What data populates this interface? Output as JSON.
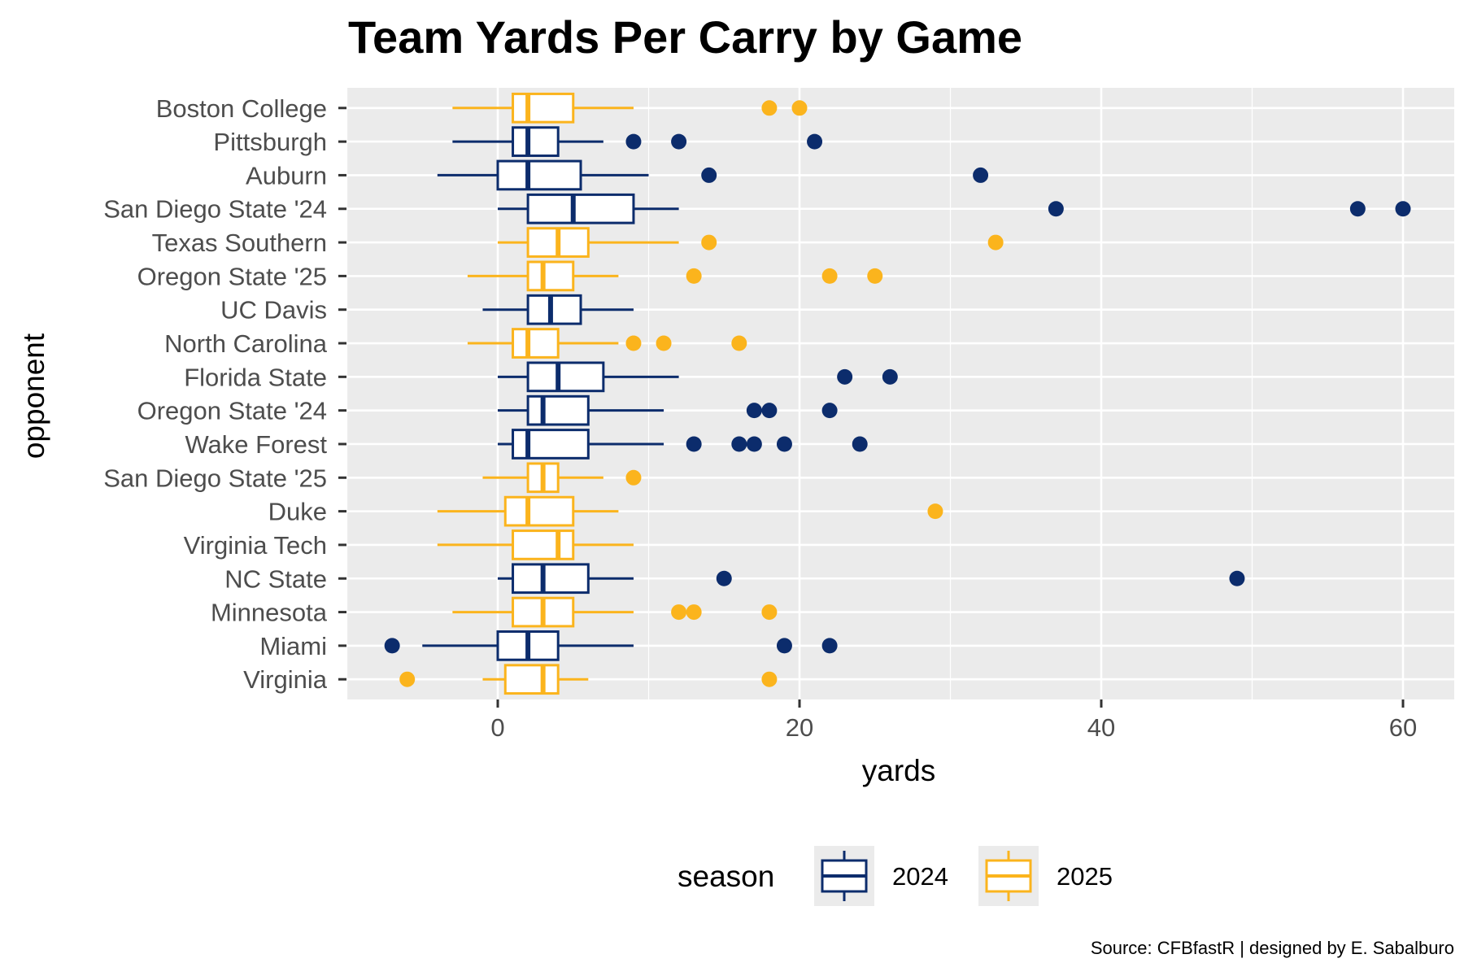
{
  "chart_data": {
    "type": "boxplot",
    "title": "Team Yards Per Carry by Game",
    "xlabel": "yards",
    "ylabel": "opponent",
    "xlim": [
      -10,
      63
    ],
    "x_ticks": [
      0,
      20,
      40,
      60
    ],
    "grid": true,
    "legend": {
      "title": "season",
      "position": "bottom",
      "entries": [
        {
          "label": "2024",
          "color": "#0C2C6C"
        },
        {
          "label": "2025",
          "color": "#FBB41D"
        }
      ]
    },
    "caption": "Source: CFBfastR | designed by E. Sabalburo",
    "series": [
      {
        "opponent": "Boston College",
        "season": "2025",
        "whisker_low": -3,
        "q1": 1,
        "median": 2,
        "q3": 5,
        "whisker_high": 9,
        "outliers": [
          18,
          20
        ]
      },
      {
        "opponent": "Pittsburgh",
        "season": "2024",
        "whisker_low": -3,
        "q1": 1,
        "median": 2,
        "q3": 4,
        "whisker_high": 7,
        "outliers": [
          9,
          12,
          21
        ]
      },
      {
        "opponent": "Auburn",
        "season": "2024",
        "whisker_low": -4,
        "q1": 0,
        "median": 2,
        "q3": 5.5,
        "whisker_high": 10,
        "outliers": [
          14,
          32
        ]
      },
      {
        "opponent": "San Diego State '24",
        "season": "2024",
        "whisker_low": 0,
        "q1": 2,
        "median": 5,
        "q3": 9,
        "whisker_high": 12,
        "outliers": [
          37,
          57,
          60
        ]
      },
      {
        "opponent": "Texas Southern",
        "season": "2025",
        "whisker_low": 0,
        "q1": 2,
        "median": 4,
        "q3": 6,
        "whisker_high": 12,
        "outliers": [
          14,
          33
        ]
      },
      {
        "opponent": "Oregon State '25",
        "season": "2025",
        "whisker_low": -2,
        "q1": 2,
        "median": 3,
        "q3": 5,
        "whisker_high": 8,
        "outliers": [
          13,
          22,
          25
        ]
      },
      {
        "opponent": "UC Davis",
        "season": "2024",
        "whisker_low": -1,
        "q1": 2,
        "median": 3.5,
        "q3": 5.5,
        "whisker_high": 9,
        "outliers": []
      },
      {
        "opponent": "North Carolina",
        "season": "2025",
        "whisker_low": -2,
        "q1": 1,
        "median": 2,
        "q3": 4,
        "whisker_high": 8,
        "outliers": [
          9,
          11,
          16
        ]
      },
      {
        "opponent": "Florida State",
        "season": "2024",
        "whisker_low": 0,
        "q1": 2,
        "median": 4,
        "q3": 7,
        "whisker_high": 12,
        "outliers": [
          23,
          26
        ]
      },
      {
        "opponent": "Oregon State '24",
        "season": "2024",
        "whisker_low": 0,
        "q1": 2,
        "median": 3,
        "q3": 6,
        "whisker_high": 11,
        "outliers": [
          17,
          18,
          22
        ]
      },
      {
        "opponent": "Wake Forest",
        "season": "2024",
        "whisker_low": 0,
        "q1": 1,
        "median": 2,
        "q3": 6,
        "whisker_high": 11,
        "outliers": [
          13,
          16,
          17,
          19,
          24
        ]
      },
      {
        "opponent": "San Diego State '25",
        "season": "2025",
        "whisker_low": -1,
        "q1": 2,
        "median": 3,
        "q3": 4,
        "whisker_high": 7,
        "outliers": [
          9
        ]
      },
      {
        "opponent": "Duke",
        "season": "2025",
        "whisker_low": -4,
        "q1": 0.5,
        "median": 2,
        "q3": 5,
        "whisker_high": 8,
        "outliers": [
          29
        ]
      },
      {
        "opponent": "Virginia Tech",
        "season": "2025",
        "whisker_low": -4,
        "q1": 1,
        "median": 4,
        "q3": 5,
        "whisker_high": 9,
        "outliers": []
      },
      {
        "opponent": "NC State",
        "season": "2024",
        "whisker_low": 0,
        "q1": 1,
        "median": 3,
        "q3": 6,
        "whisker_high": 9,
        "outliers": [
          15,
          49
        ]
      },
      {
        "opponent": "Minnesota",
        "season": "2025",
        "whisker_low": -3,
        "q1": 1,
        "median": 3,
        "q3": 5,
        "whisker_high": 9,
        "outliers": [
          12,
          13,
          18
        ]
      },
      {
        "opponent": "Miami",
        "season": "2024",
        "whisker_low": -5,
        "q1": 0,
        "median": 2,
        "q3": 4,
        "whisker_high": 9,
        "outliers": [
          -7,
          19,
          22
        ]
      },
      {
        "opponent": "Virginia",
        "season": "2025",
        "whisker_low": -1,
        "q1": 0.5,
        "median": 3,
        "q3": 4,
        "whisker_high": 6,
        "outliers": [
          -6,
          18
        ]
      }
    ]
  }
}
